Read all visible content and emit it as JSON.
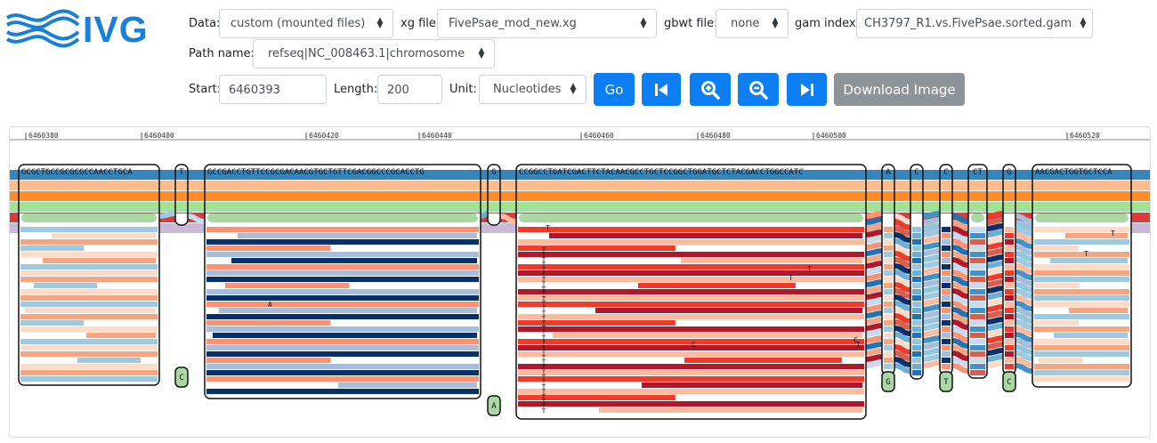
{
  "app": {
    "logo_text": "IVG"
  },
  "controls": {
    "data_label": "Data:",
    "data_value": "custom (mounted files)",
    "xg_label": "xg file:",
    "xg_value": "FivePsae_mod_new.xg",
    "gbwt_label": "gbwt file:",
    "gbwt_value": "none",
    "gam_label": "gam index:",
    "gam_value": "CH3797_R1.vs.FivePsae.sorted.gam",
    "path_label": "Path name:",
    "path_value": "refseq|NC_008463.1|chromosome",
    "start_label": "Start:",
    "start_value": "6460393",
    "length_label": "Length:",
    "length_value": "200",
    "unit_label": "Unit:",
    "unit_value": "Nucleotides",
    "go_label": "Go",
    "download_label": "Download Image",
    "icons": {
      "step_back": "skip-back-icon",
      "zoom_in": "zoom-in-icon",
      "zoom_out": "zoom-out-icon",
      "step_forward": "skip-forward-icon"
    }
  },
  "colors": {
    "primary": "#0d7ff2",
    "disabled": "#8c9399",
    "logo": "#1a7fd6",
    "path_tracks": [
      "#1f77b4",
      "#ffb482",
      "#ff7f0e",
      "#98df8a",
      "#d62728",
      "#c5b0d5"
    ]
  },
  "axis_ticks": [
    {
      "label": "6460380"
    },
    {
      "label": "6460400"
    },
    {
      "label": "6460420"
    },
    {
      "label": "6460440"
    },
    {
      "label": "6460460"
    },
    {
      "label": "6460480"
    },
    {
      "label": "6460500"
    },
    {
      "label": "6460520"
    }
  ],
  "nodes": [
    {
      "seq": "GCGCTGCCGCGCGCCAACCTGCA"
    },
    {
      "seq": "T"
    },
    {
      "seq": "GCCGACCTGTTCCGCGACAACGTGCTGTTCGACGGCCCGCACCTG"
    },
    {
      "seq": "G"
    },
    {
      "seq": "CCGGCCTGATCGACTTCTACAACGCCTGCTCCGGCTGGATGCTCTACGACCTGGCCATC"
    },
    {
      "seq": "A"
    },
    {
      "seq": "C"
    },
    {
      "seq": "C"
    },
    {
      "seq": "CT"
    },
    {
      "seq": "G"
    },
    {
      "seq": "AACGACTGGTGCTCCA"
    }
  ],
  "variant_nodes": [
    {
      "seq": "C"
    },
    {
      "seq": "A"
    },
    {
      "seq": "G"
    },
    {
      "seq": "T"
    },
    {
      "seq": "C"
    }
  ],
  "read_marks": [
    {
      "seq": "A"
    },
    {
      "seq": "T"
    },
    {
      "seq": "T"
    },
    {
      "seq": "T"
    },
    {
      "seq": "C"
    },
    {
      "seq": "C"
    },
    {
      "seq": "T"
    },
    {
      "seq": "T"
    },
    {
      "seq": "T"
    }
  ]
}
